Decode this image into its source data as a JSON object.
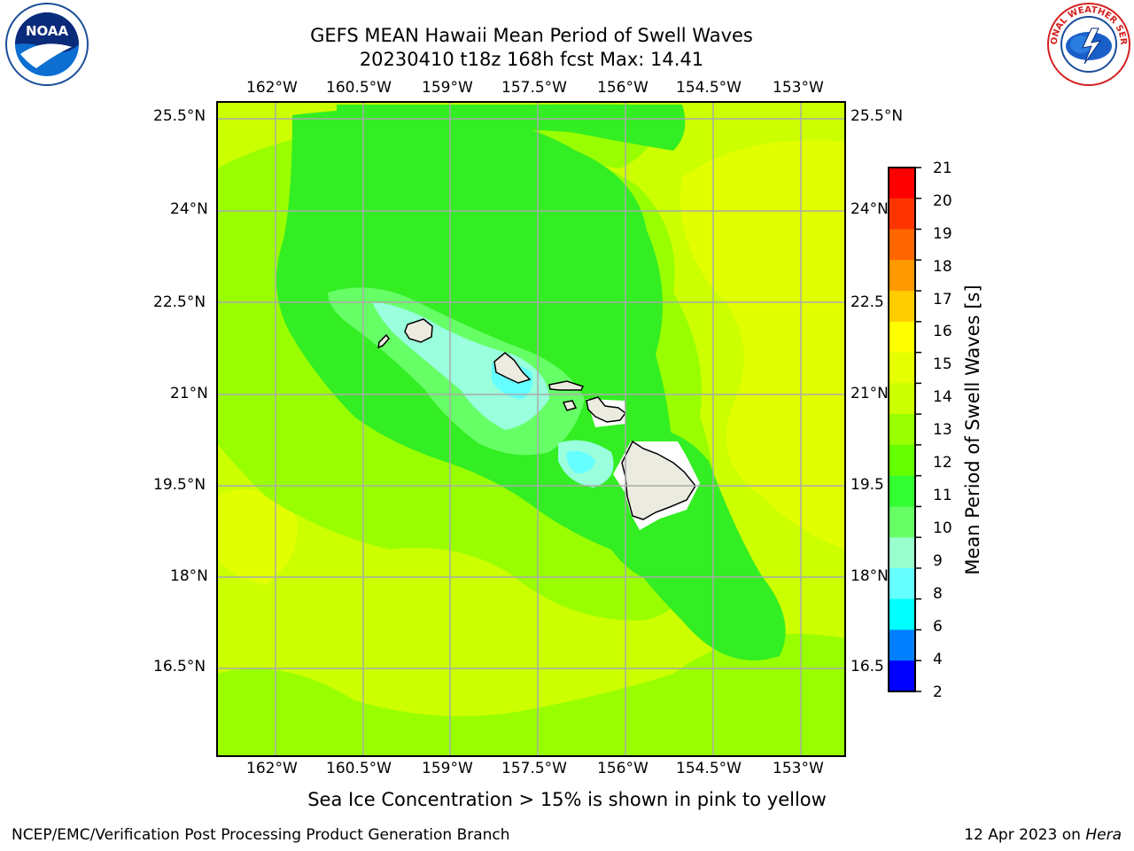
{
  "title": {
    "line1": "GEFS MEAN Hawaii Mean Period of Swell Waves",
    "line2": "20230410 t18z 168h fcst   Max: 14.41"
  },
  "map": {
    "lon_labels": [
      "162°W",
      "160.5°W",
      "159°W",
      "157.5°W",
      "156°W",
      "154.5°W",
      "153°W"
    ],
    "lat_labels": [
      "25.5°N",
      "24°N",
      "22.5°N",
      "21°N",
      "19.5°N",
      "18°N",
      "16.5°N"
    ],
    "lat_labels_right": [
      "25.5°N",
      "24°N",
      "22.5",
      "21°N",
      "19.5",
      "18°N",
      "16.5"
    ]
  },
  "colorbar": {
    "title": "Mean Period of Swell Waves [s]",
    "ticks": [
      "21",
      "20",
      "19",
      "18",
      "17",
      "16",
      "15",
      "14",
      "13",
      "12",
      "11",
      "10",
      "9",
      "8",
      "6",
      "4",
      "2"
    ],
    "colors": [
      "#ff0000",
      "#ff3300",
      "#ff6600",
      "#ff9900",
      "#ffcc00",
      "#ffff00",
      "#e5ff00",
      "#ccff00",
      "#99ff00",
      "#66ff00",
      "#33ff33",
      "#66ff66",
      "#99ffcc",
      "#66ffff",
      "#00ffff",
      "#0080ff",
      "#0000ff"
    ]
  },
  "note": "Sea Ice Concentration > 15% is shown in pink to yellow",
  "footer": {
    "left": "NCEP/EMC/Verification Post Processing Product Generation Branch",
    "date": "12 Apr 2023 on ",
    "host": "Hera"
  },
  "logos": {
    "noaa_text": "NOAA",
    "nws_text": "NATIONAL WEATHER SERVICE"
  }
}
